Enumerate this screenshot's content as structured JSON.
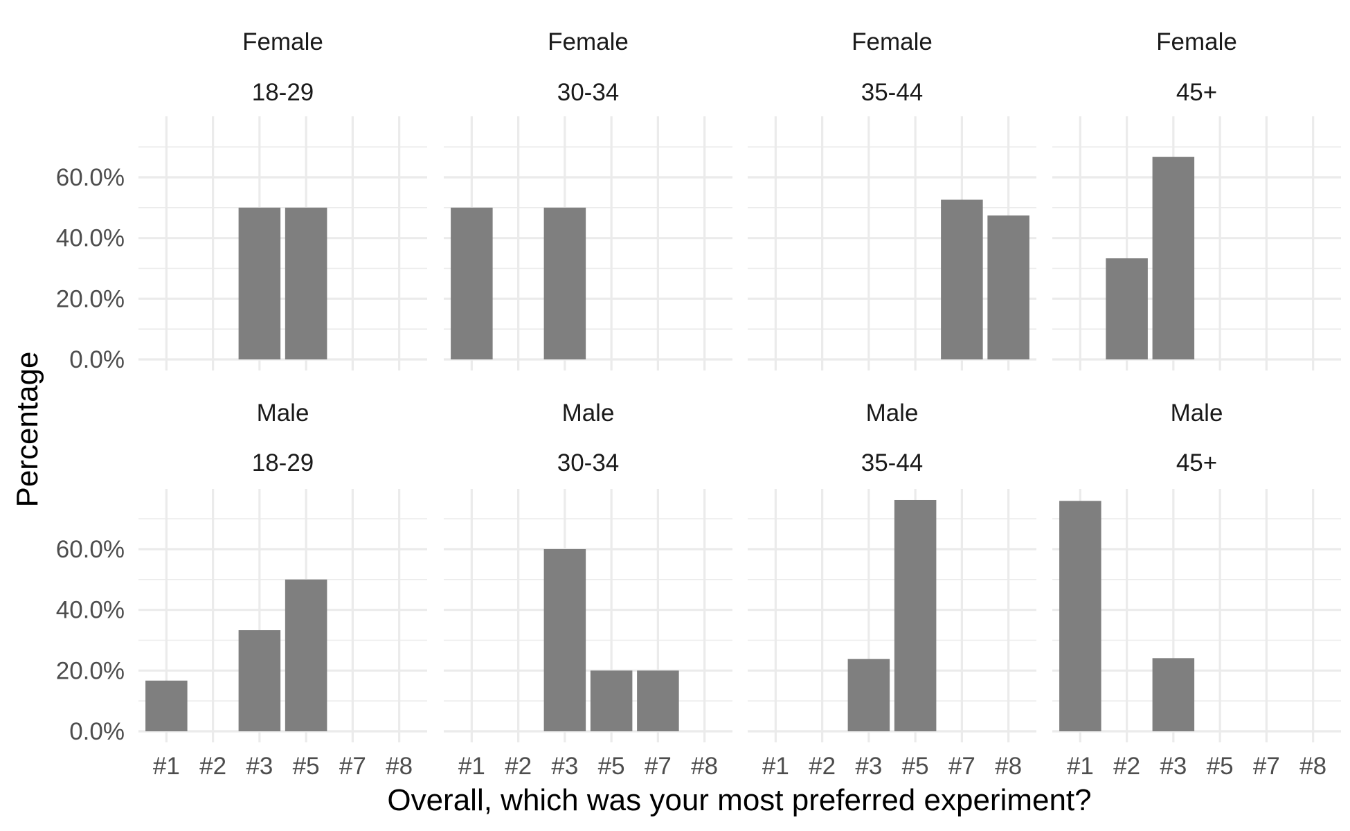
{
  "chart_data": {
    "type": "bar",
    "facet_by": [
      "gender",
      "age_group"
    ],
    "xlabel": "Overall, which was your most preferred experiment?",
    "ylabel": "Percentage",
    "categories": [
      "#1",
      "#2",
      "#3",
      "#5",
      "#7",
      "#8"
    ],
    "y_ticks": [
      "0.0%",
      "20.0%",
      "40.0%",
      "60.0%"
    ],
    "y_tick_values": [
      0,
      20,
      40,
      60
    ],
    "ylim": [
      -4,
      80
    ],
    "grid": true,
    "legend": "none",
    "bar_color": "#7f7f7f",
    "grid_color": "#ebebeb",
    "panels": [
      {
        "gender": "Female",
        "age": "18-29",
        "values": [
          0,
          0,
          50,
          50,
          0,
          0
        ]
      },
      {
        "gender": "Female",
        "age": "30-34",
        "values": [
          50,
          0,
          50,
          0,
          0,
          0
        ]
      },
      {
        "gender": "Female",
        "age": "35-44",
        "values": [
          0,
          0,
          0,
          0,
          52.6,
          47.4
        ]
      },
      {
        "gender": "Female",
        "age": "45+",
        "values": [
          0,
          33.3,
          66.7,
          0,
          0,
          0
        ]
      },
      {
        "gender": "Male",
        "age": "18-29",
        "values": [
          16.7,
          0,
          33.3,
          50,
          0,
          0
        ]
      },
      {
        "gender": "Male",
        "age": "30-34",
        "values": [
          0,
          0,
          60,
          20,
          20,
          0
        ]
      },
      {
        "gender": "Male",
        "age": "35-44",
        "values": [
          0,
          0,
          23.8,
          76.2,
          0,
          0
        ]
      },
      {
        "gender": "Male",
        "age": "45+",
        "values": [
          75.9,
          0,
          24.1,
          0,
          0,
          0
        ]
      }
    ]
  }
}
